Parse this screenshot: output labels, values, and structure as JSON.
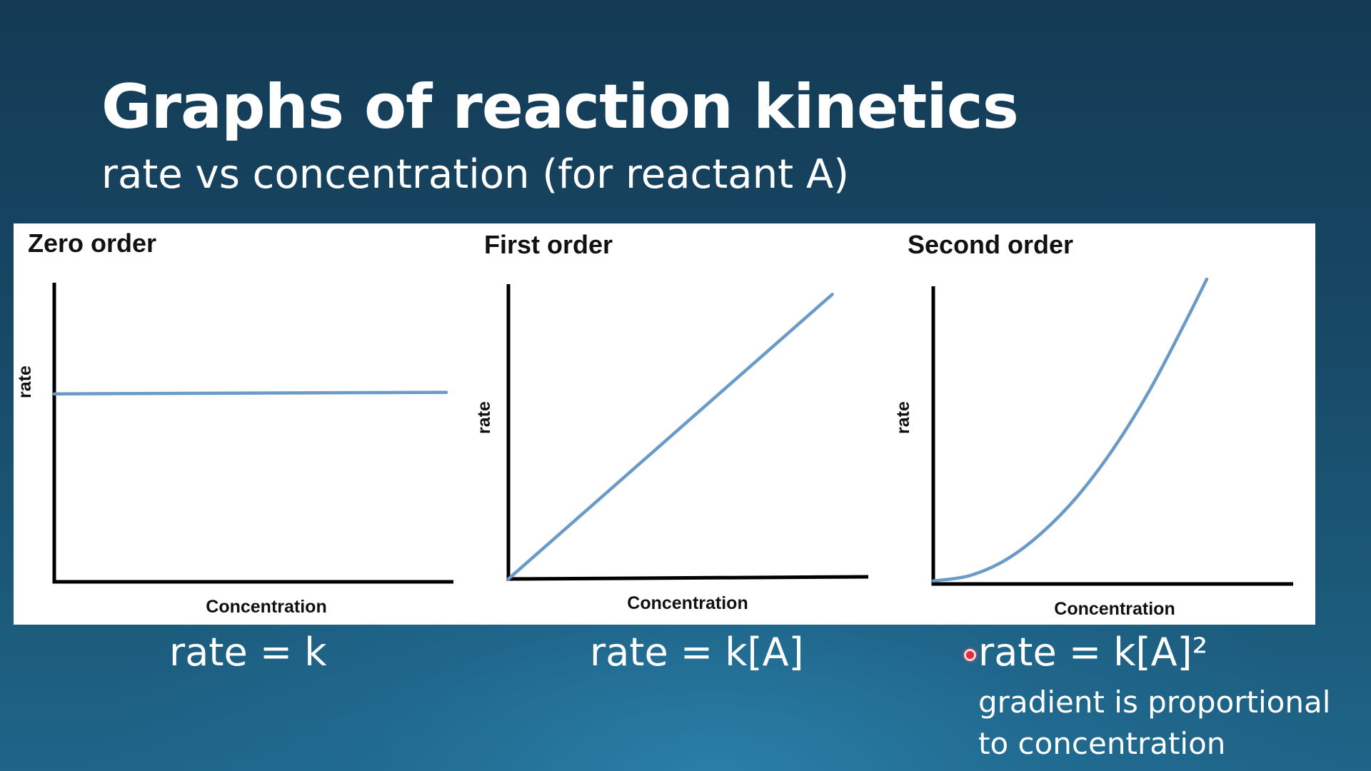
{
  "slide": {
    "title": "Graphs of reaction kinetics",
    "subtitle": "rate vs concentration (for reactant A)"
  },
  "chart_data": [
    {
      "type": "line",
      "title": "Zero order",
      "xlabel": "Concentration",
      "ylabel": "rate",
      "xlim": [
        0,
        1
      ],
      "ylim": [
        0,
        1
      ],
      "series": [
        {
          "name": "rate",
          "x": [
            0,
            0.94
          ],
          "y": [
            0.63,
            0.635
          ]
        }
      ],
      "equation": "rate = k",
      "color": "#6a9ac8"
    },
    {
      "type": "line",
      "title": "First order",
      "xlabel": "Concentration",
      "ylabel": "rate",
      "xlim": [
        0,
        1
      ],
      "ylim": [
        0,
        1
      ],
      "series": [
        {
          "name": "rate",
          "x": [
            0,
            0.9
          ],
          "y": [
            0,
            0.9
          ]
        }
      ],
      "equation": "rate = k[A]",
      "color": "#6a9ac8"
    },
    {
      "type": "line",
      "title": "Second order",
      "xlabel": "Concentration",
      "ylabel": "rate",
      "xlim": [
        0,
        1
      ],
      "ylim": [
        0,
        1
      ],
      "series": [
        {
          "name": "rate",
          "x": [
            0,
            0.1,
            0.2,
            0.3,
            0.4,
            0.5,
            0.6,
            0.7,
            0.76
          ],
          "y": [
            0.01,
            0.027,
            0.078,
            0.166,
            0.287,
            0.443,
            0.633,
            0.858,
            1.0
          ]
        }
      ],
      "equation": "rate = k[A]²",
      "color": "#6a9ac8"
    }
  ],
  "annotation": {
    "line1": "gradient is proportional",
    "line2": "to concentration"
  }
}
